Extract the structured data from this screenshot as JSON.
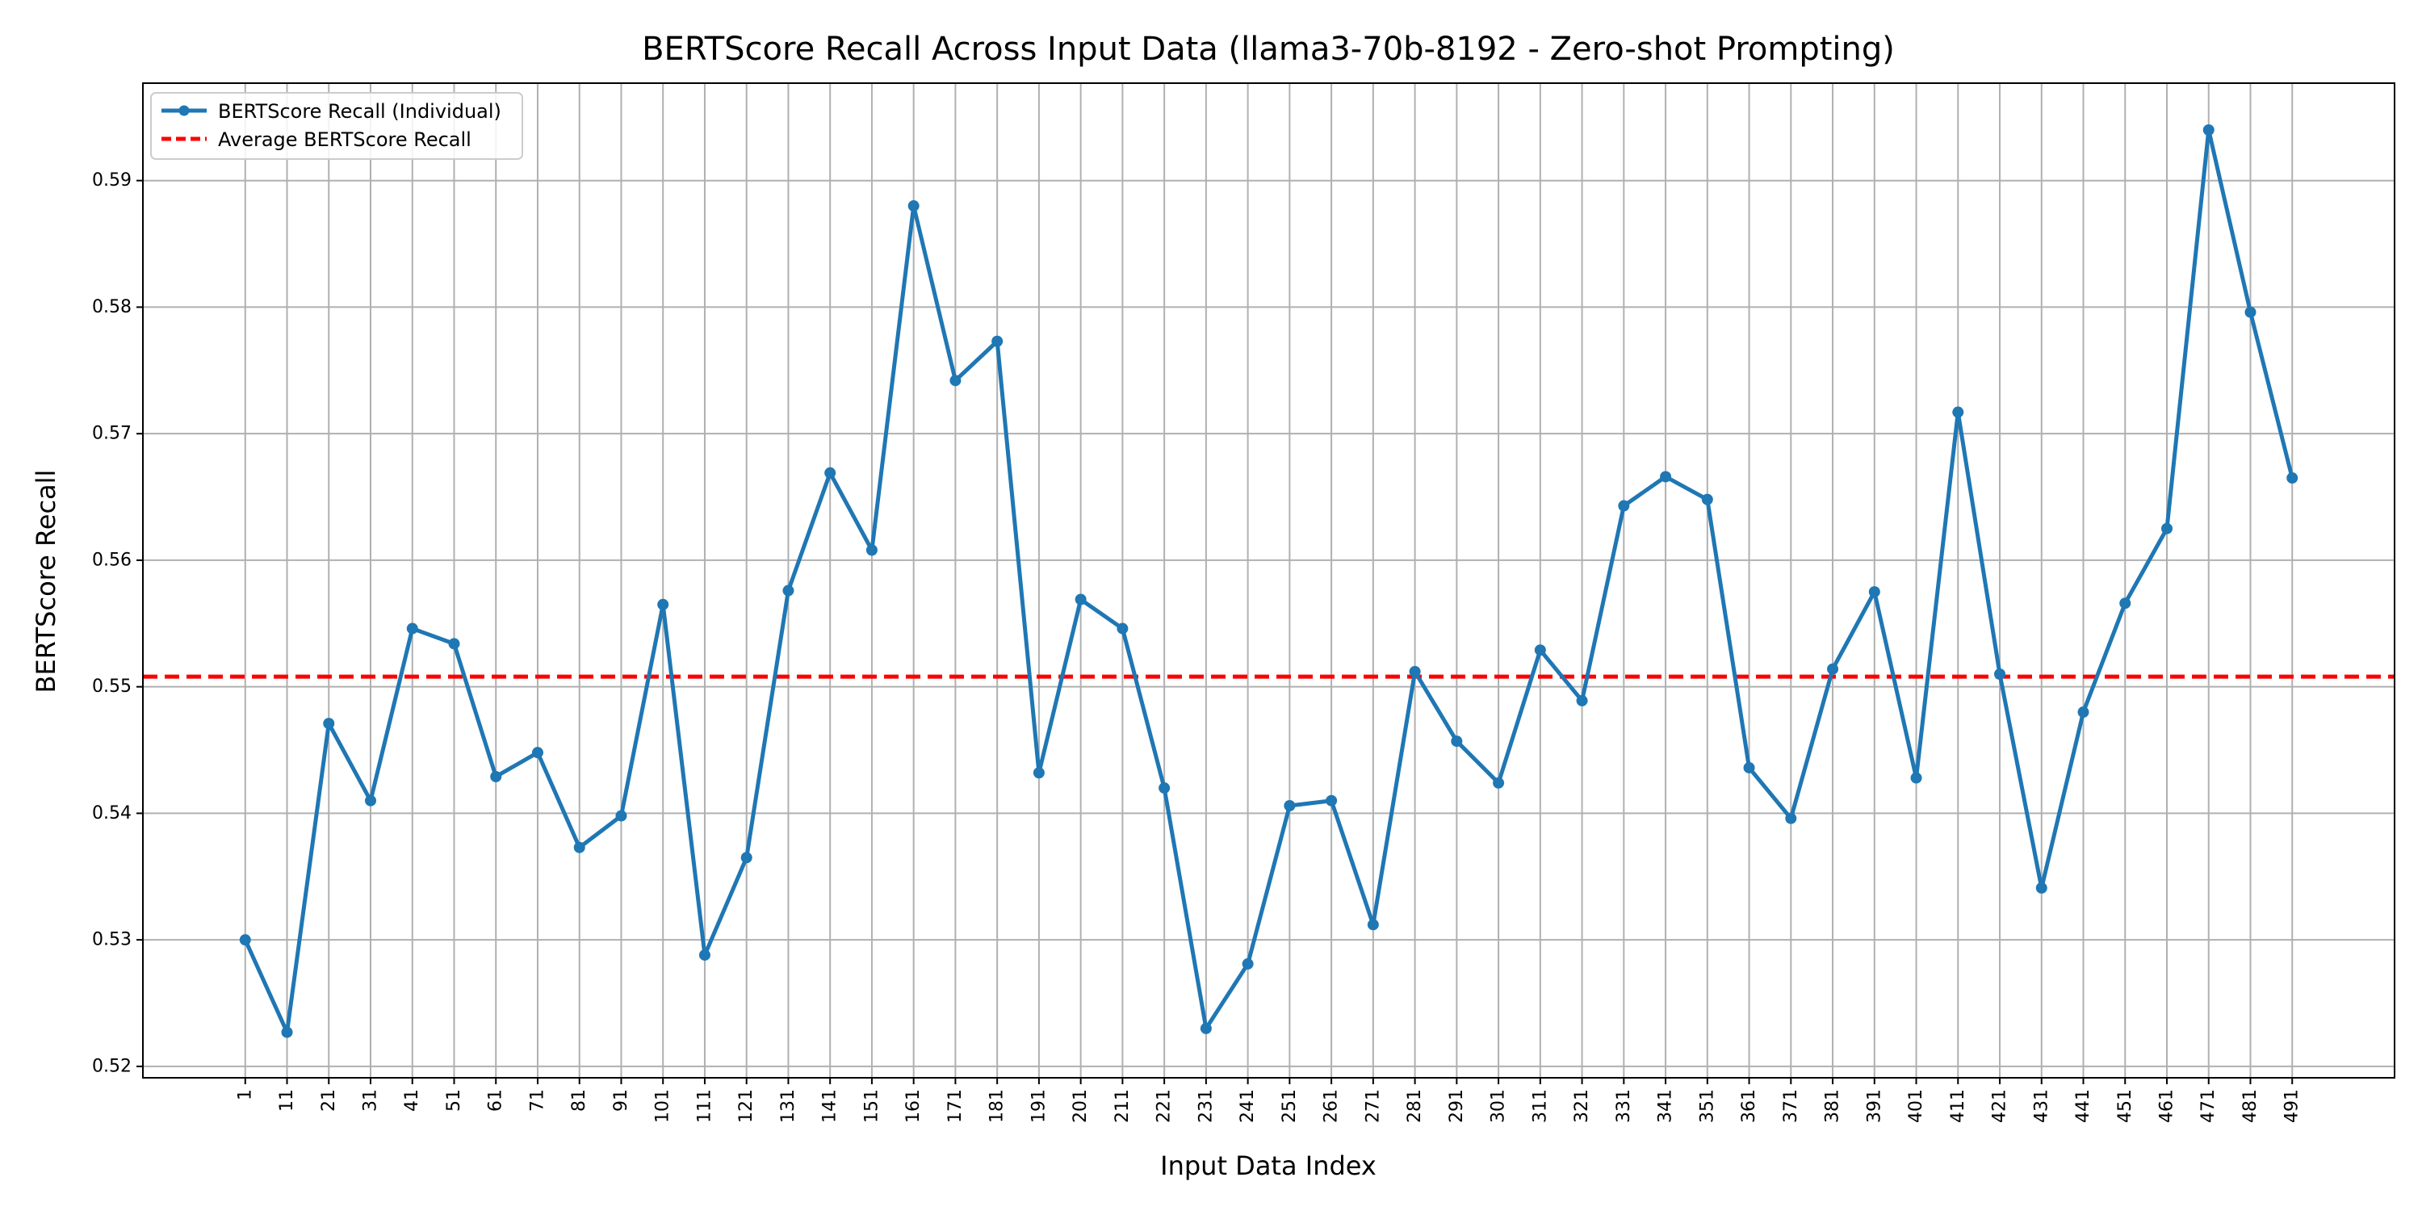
{
  "chart_data": {
    "type": "line",
    "title": "BERTScore Recall Across Input Data (llama3-70b-8192 - Zero-shot Prompting)",
    "xlabel": "Input Data Index",
    "ylabel": "BERTScore Recall",
    "x": [
      1,
      11,
      21,
      31,
      41,
      51,
      61,
      71,
      81,
      91,
      101,
      111,
      121,
      131,
      141,
      151,
      161,
      171,
      181,
      191,
      201,
      211,
      221,
      231,
      241,
      251,
      261,
      271,
      281,
      291,
      301,
      311,
      321,
      331,
      341,
      351,
      361,
      371,
      381,
      391,
      401,
      411,
      421,
      431,
      441,
      451,
      461,
      471,
      481,
      491
    ],
    "xlim": [
      -23.5,
      515.5
    ],
    "ylim": [
      0.5191,
      0.5977
    ],
    "yticks": [
      0.52,
      0.53,
      0.54,
      0.55,
      0.56,
      0.57,
      0.58,
      0.59
    ],
    "ytick_labels": [
      "0.52",
      "0.53",
      "0.54",
      "0.55",
      "0.56",
      "0.57",
      "0.58",
      "0.59"
    ],
    "grid": true,
    "legend_position": "top-left",
    "series": [
      {
        "name": "BERTScore Recall (Individual)",
        "style": "line-with-markers",
        "color": "#1f77b4",
        "values": [
          0.53,
          0.5227,
          0.5471,
          0.541,
          0.5546,
          0.5534,
          0.5429,
          0.5448,
          0.5373,
          0.5398,
          0.5565,
          0.5288,
          0.5365,
          0.5576,
          0.5669,
          0.5608,
          0.588,
          0.5742,
          0.5773,
          0.5432,
          0.5569,
          0.5546,
          0.542,
          0.523,
          0.5281,
          0.5406,
          0.541,
          0.5312,
          0.5512,
          0.5457,
          0.5424,
          0.5529,
          0.5489,
          0.5643,
          0.5666,
          0.5648,
          0.5436,
          0.5396,
          0.5514,
          0.5575,
          0.5428,
          0.5717,
          0.551,
          0.5341,
          0.548,
          0.5566,
          0.5625,
          0.594,
          0.5796,
          0.5665
        ]
      },
      {
        "name": "Average BERTScore Recall",
        "style": "dashed",
        "color": "#ff0000",
        "value": 0.5508
      }
    ]
  }
}
